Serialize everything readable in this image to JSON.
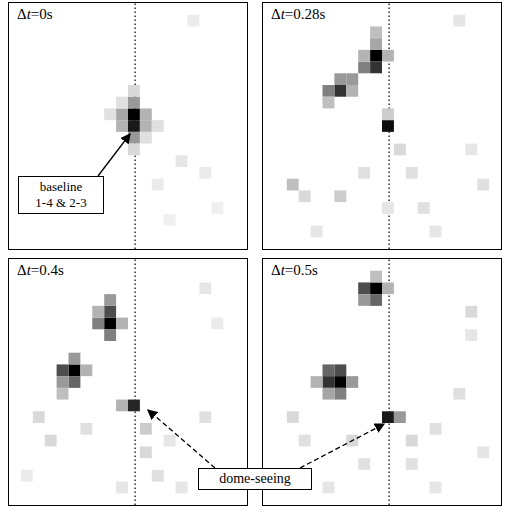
{
  "chart_data": [
    {
      "type": "heatmap",
      "title": "Δt=0s",
      "xlim": [
        0,
        20
      ],
      "ylim": [
        0,
        21
      ],
      "zlim": [
        0,
        1
      ],
      "reference_x": 10.6,
      "tick_labels": false,
      "annotations": [
        "baseline\n1-4 & 2-3"
      ],
      "cells": [
        [
          10,
          9,
          1.0
        ],
        [
          10,
          10,
          0.9
        ],
        [
          10,
          8,
          0.4
        ],
        [
          10,
          11,
          0.4
        ],
        [
          9,
          9,
          0.35
        ],
        [
          9,
          10,
          0.3
        ],
        [
          11,
          9,
          0.3
        ],
        [
          11,
          10,
          0.3
        ],
        [
          10,
          7,
          0.15
        ],
        [
          10,
          12,
          0.15
        ],
        [
          8,
          9,
          0.12
        ],
        [
          12,
          10,
          0.12
        ],
        [
          9,
          8,
          0.12
        ],
        [
          11,
          11,
          0.12
        ],
        [
          15,
          1,
          0.08
        ],
        [
          14,
          13,
          0.1
        ],
        [
          16,
          14,
          0.08
        ],
        [
          12,
          15,
          0.08
        ],
        [
          17,
          17,
          0.06
        ],
        [
          13,
          18,
          0.06
        ]
      ]
    },
    {
      "type": "heatmap",
      "title": "Δt=0.28s",
      "xlim": [
        0,
        20
      ],
      "ylim": [
        0,
        21
      ],
      "zlim": [
        0,
        1
      ],
      "reference_x": 10.6,
      "tick_labels": false,
      "cells": [
        [
          9,
          4,
          1.0
        ],
        [
          9,
          5,
          0.8
        ],
        [
          8,
          5,
          0.5
        ],
        [
          9,
          3,
          0.35
        ],
        [
          9,
          2,
          0.25
        ],
        [
          10,
          4,
          0.3
        ],
        [
          8,
          4,
          0.3
        ],
        [
          6,
          7,
          0.8
        ],
        [
          5,
          7,
          0.5
        ],
        [
          6,
          6,
          0.4
        ],
        [
          7,
          6,
          0.4
        ],
        [
          5,
          8,
          0.25
        ],
        [
          7,
          7,
          0.3
        ],
        [
          10,
          10,
          0.95
        ],
        [
          10,
          9,
          0.2
        ],
        [
          2,
          15,
          0.25
        ],
        [
          3,
          16,
          0.15
        ],
        [
          6,
          16,
          0.2
        ],
        [
          8,
          14,
          0.12
        ],
        [
          11,
          12,
          0.15
        ],
        [
          12,
          14,
          0.12
        ],
        [
          13,
          17,
          0.12
        ],
        [
          10,
          17,
          0.1
        ],
        [
          16,
          1,
          0.1
        ],
        [
          17,
          12,
          0.1
        ],
        [
          18,
          15,
          0.12
        ],
        [
          14,
          19,
          0.1
        ],
        [
          4,
          19,
          0.1
        ]
      ]
    },
    {
      "type": "heatmap",
      "title": "Δt=0.4s",
      "xlim": [
        0,
        20
      ],
      "ylim": [
        0,
        21
      ],
      "zlim": [
        0,
        1
      ],
      "reference_x": 10.6,
      "tick_labels": false,
      "annotations": [
        "dome-seeing"
      ],
      "cells": [
        [
          8,
          5,
          1.0
        ],
        [
          8,
          4,
          0.7
        ],
        [
          7,
          5,
          0.5
        ],
        [
          8,
          3,
          0.4
        ],
        [
          8,
          6,
          0.5
        ],
        [
          9,
          5,
          0.3
        ],
        [
          7,
          4,
          0.3
        ],
        [
          5,
          9,
          1.0
        ],
        [
          4,
          9,
          0.7
        ],
        [
          5,
          10,
          0.6
        ],
        [
          4,
          10,
          0.4
        ],
        [
          5,
          8,
          0.4
        ],
        [
          6,
          9,
          0.3
        ],
        [
          4,
          11,
          0.25
        ],
        [
          10,
          12,
          0.85
        ],
        [
          9,
          12,
          0.3
        ],
        [
          2,
          13,
          0.15
        ],
        [
          3,
          15,
          0.15
        ],
        [
          6,
          14,
          0.12
        ],
        [
          11,
          14,
          0.2
        ],
        [
          11,
          16,
          0.15
        ],
        [
          12,
          18,
          0.12
        ],
        [
          13,
          15,
          0.1
        ],
        [
          16,
          13,
          0.12
        ],
        [
          16,
          2,
          0.1
        ],
        [
          17,
          5,
          0.08
        ],
        [
          9,
          19,
          0.1
        ],
        [
          14,
          19,
          0.1
        ],
        [
          1,
          18,
          0.08
        ]
      ]
    },
    {
      "type": "heatmap",
      "title": "Δt=0.5s",
      "xlim": [
        0,
        20
      ],
      "ylim": [
        0,
        21
      ],
      "zlim": [
        0,
        1
      ],
      "reference_x": 10.6,
      "tick_labels": false,
      "cells": [
        [
          9,
          2,
          1.0
        ],
        [
          8,
          2,
          0.7
        ],
        [
          9,
          3,
          0.6
        ],
        [
          10,
          2,
          0.3
        ],
        [
          8,
          3,
          0.4
        ],
        [
          9,
          1,
          0.25
        ],
        [
          6,
          10,
          1.0
        ],
        [
          5,
          10,
          0.8
        ],
        [
          6,
          9,
          0.7
        ],
        [
          5,
          9,
          0.6
        ],
        [
          6,
          11,
          0.5
        ],
        [
          7,
          10,
          0.4
        ],
        [
          5,
          11,
          0.35
        ],
        [
          4,
          10,
          0.3
        ],
        [
          10,
          13,
          0.9
        ],
        [
          11,
          13,
          0.4
        ],
        [
          2,
          13,
          0.15
        ],
        [
          3,
          15,
          0.12
        ],
        [
          7,
          15,
          0.15
        ],
        [
          8,
          17,
          0.12
        ],
        [
          12,
          15,
          0.15
        ],
        [
          12,
          17,
          0.12
        ],
        [
          14,
          14,
          0.12
        ],
        [
          17,
          4,
          0.15
        ],
        [
          17,
          6,
          0.1
        ],
        [
          16,
          11,
          0.12
        ],
        [
          18,
          16,
          0.1
        ],
        [
          14,
          19,
          0.1
        ],
        [
          5,
          19,
          0.1
        ]
      ]
    }
  ]
}
